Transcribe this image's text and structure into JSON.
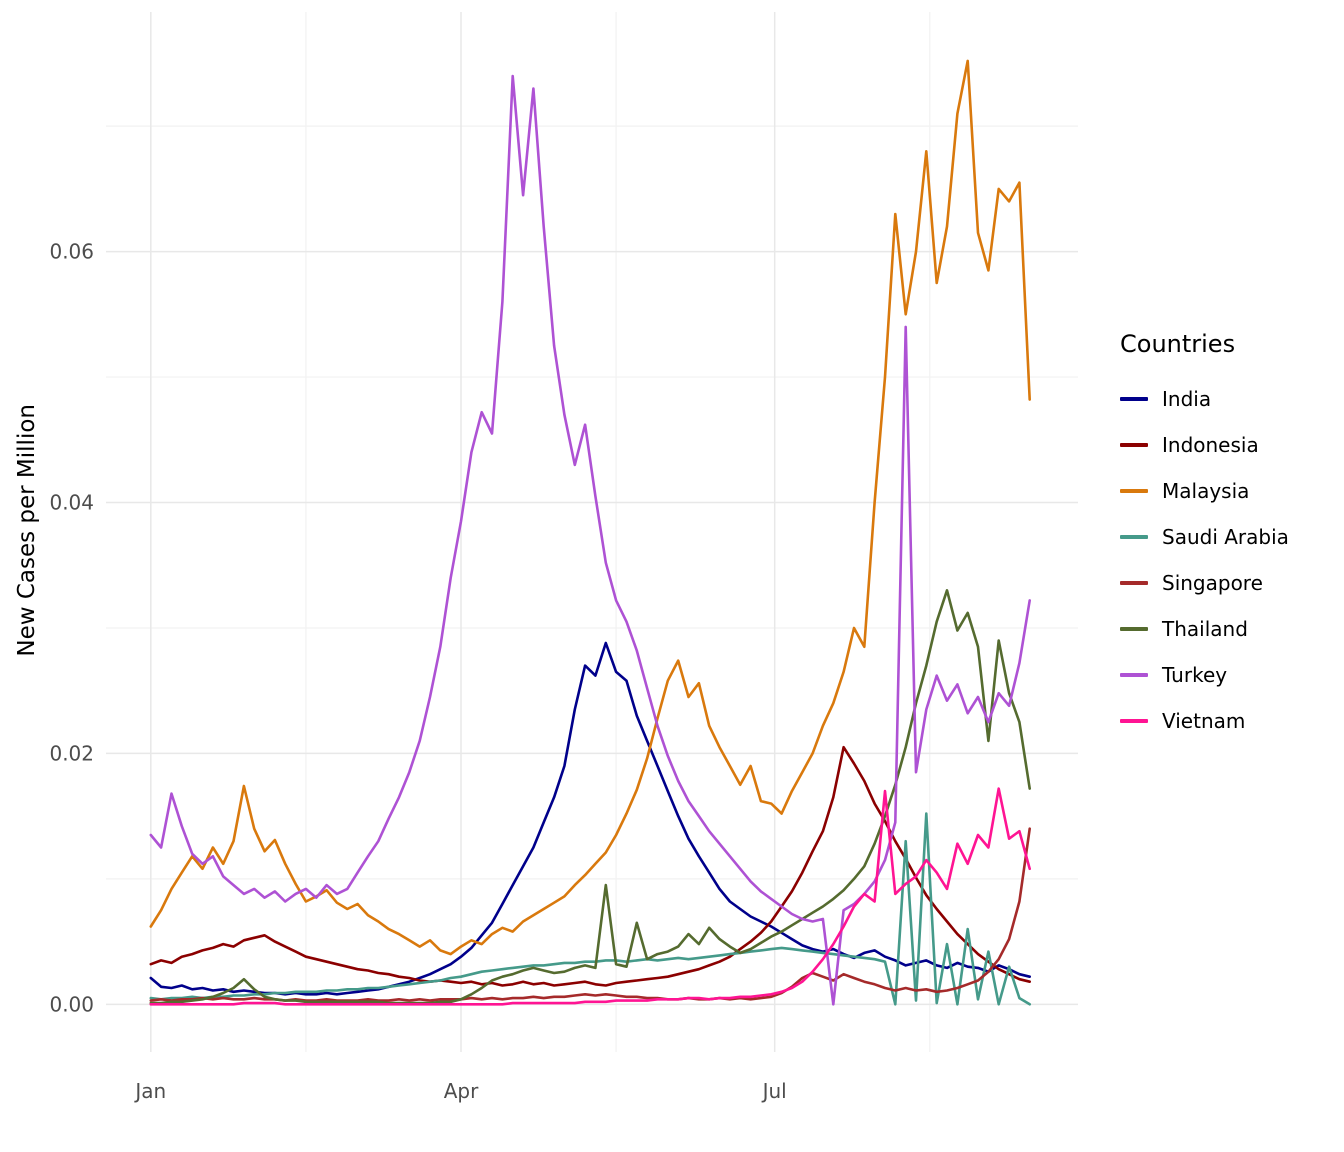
{
  "figure": {
    "background": "#FFFFFF"
  },
  "panel": {
    "background": "#FFFFFF",
    "grid_major_color": "#E8E8E8",
    "grid_minor_color": "#F2F2F2",
    "tick_label_color": "#4D4D4D"
  },
  "chart_data": {
    "type": "line",
    "title": "",
    "xlabel": "",
    "ylabel": "New Cases per Million",
    "legend_title": "Countries",
    "legend_position": "right",
    "grid": true,
    "x_unit": "day_of_year",
    "xlim": [
      -13,
      269
    ],
    "ylim": [
      -0.0038,
      0.0791
    ],
    "x_ticks": [
      {
        "day": 0,
        "label": "Jan"
      },
      {
        "day": 90,
        "label": "Apr"
      },
      {
        "day": 181,
        "label": "Jul"
      }
    ],
    "x_minor_days": [
      45,
      135,
      226
    ],
    "y_ticks": [
      0.0,
      0.02,
      0.04,
      0.06
    ],
    "y_tick_labels": [
      "0.00",
      "0.02",
      "0.04",
      "0.06"
    ],
    "y_minor": [
      0.01,
      0.03,
      0.05,
      0.07
    ],
    "days": [
      0,
      3,
      6,
      9,
      12,
      15,
      18,
      21,
      24,
      27,
      30,
      33,
      36,
      39,
      42,
      45,
      48,
      51,
      54,
      57,
      60,
      63,
      66,
      69,
      72,
      75,
      78,
      81,
      84,
      87,
      90,
      93,
      96,
      99,
      102,
      105,
      108,
      111,
      114,
      117,
      120,
      123,
      126,
      129,
      132,
      135,
      138,
      141,
      144,
      147,
      150,
      153,
      156,
      159,
      162,
      165,
      168,
      171,
      174,
      177,
      180,
      183,
      186,
      189,
      192,
      195,
      198,
      201,
      204,
      207,
      210,
      213,
      216,
      219,
      222,
      225,
      228,
      231,
      234,
      237,
      240,
      243,
      246,
      249,
      252,
      255
    ],
    "series": [
      {
        "name": "India",
        "color": "#00008B",
        "values": [
          0.0021,
          0.0014,
          0.0013,
          0.0015,
          0.0012,
          0.0013,
          0.0011,
          0.0012,
          0.001,
          0.0011,
          0.001,
          0.0009,
          0.0009,
          0.0008,
          0.0009,
          0.0008,
          0.0008,
          0.0009,
          0.0008,
          0.0009,
          0.001,
          0.0011,
          0.0012,
          0.0014,
          0.0016,
          0.0018,
          0.0021,
          0.0024,
          0.0028,
          0.0032,
          0.0038,
          0.0045,
          0.0055,
          0.0065,
          0.008,
          0.0095,
          0.011,
          0.0125,
          0.0145,
          0.0165,
          0.019,
          0.0235,
          0.027,
          0.0262,
          0.0288,
          0.0265,
          0.0258,
          0.023,
          0.021,
          0.019,
          0.017,
          0.015,
          0.0132,
          0.0118,
          0.0105,
          0.0092,
          0.0082,
          0.0076,
          0.007,
          0.0066,
          0.0062,
          0.0057,
          0.0052,
          0.0047,
          0.0044,
          0.0042,
          0.0044,
          0.004,
          0.0037,
          0.0041,
          0.0043,
          0.0038,
          0.0035,
          0.0031,
          0.0033,
          0.0035,
          0.0031,
          0.0029,
          0.0033,
          0.003,
          0.0029,
          0.0026,
          0.0031,
          0.0028,
          0.0024,
          0.0022
        ]
      },
      {
        "name": "Indonesia",
        "color": "#8B0000",
        "values": [
          0.0032,
          0.0035,
          0.0033,
          0.0038,
          0.004,
          0.0043,
          0.0045,
          0.0048,
          0.0046,
          0.0051,
          0.0053,
          0.0055,
          0.005,
          0.0046,
          0.0042,
          0.0038,
          0.0036,
          0.0034,
          0.0032,
          0.003,
          0.0028,
          0.0027,
          0.0025,
          0.0024,
          0.0022,
          0.0021,
          0.0019,
          0.0018,
          0.0019,
          0.0018,
          0.0017,
          0.0018,
          0.0016,
          0.0017,
          0.0015,
          0.0016,
          0.0018,
          0.0016,
          0.0017,
          0.0015,
          0.0016,
          0.0017,
          0.0018,
          0.0016,
          0.0015,
          0.0017,
          0.0018,
          0.0019,
          0.002,
          0.0021,
          0.0022,
          0.0024,
          0.0026,
          0.0028,
          0.0031,
          0.0034,
          0.0038,
          0.0044,
          0.005,
          0.0057,
          0.0066,
          0.0078,
          0.009,
          0.0105,
          0.0122,
          0.0138,
          0.0165,
          0.0205,
          0.0192,
          0.0178,
          0.016,
          0.0146,
          0.013,
          0.0116,
          0.0101,
          0.0087,
          0.0076,
          0.0066,
          0.0056,
          0.0048,
          0.004,
          0.0034,
          0.0028,
          0.0024,
          0.002,
          0.0018
        ]
      },
      {
        "name": "Malaysia",
        "color": "#D9790D",
        "values": [
          0.0062,
          0.0075,
          0.0092,
          0.0105,
          0.0118,
          0.0108,
          0.0125,
          0.0112,
          0.013,
          0.0174,
          0.014,
          0.0122,
          0.0131,
          0.0112,
          0.0096,
          0.0082,
          0.0086,
          0.0091,
          0.0081,
          0.0076,
          0.008,
          0.0071,
          0.0066,
          0.006,
          0.0056,
          0.0051,
          0.0046,
          0.0051,
          0.0043,
          0.004,
          0.0046,
          0.0051,
          0.0048,
          0.0056,
          0.0061,
          0.0058,
          0.0066,
          0.0071,
          0.0076,
          0.0081,
          0.0086,
          0.0095,
          0.0103,
          0.0112,
          0.0121,
          0.0135,
          0.0152,
          0.0171,
          0.0196,
          0.0228,
          0.0258,
          0.0274,
          0.0245,
          0.0256,
          0.0222,
          0.0205,
          0.019,
          0.0175,
          0.019,
          0.0162,
          0.016,
          0.0152,
          0.017,
          0.0185,
          0.02,
          0.0222,
          0.024,
          0.0265,
          0.03,
          0.0285,
          0.04,
          0.05,
          0.063,
          0.055,
          0.06,
          0.068,
          0.0575,
          0.062,
          0.071,
          0.0752,
          0.0615,
          0.0585,
          0.065,
          0.064,
          0.0655,
          0.0482
        ]
      },
      {
        "name": "Saudi Arabia",
        "color": "#459A8A",
        "values": [
          0.0005,
          0.0004,
          0.0005,
          0.0005,
          0.0006,
          0.0005,
          0.0006,
          0.0006,
          0.0007,
          0.0007,
          0.0008,
          0.0008,
          0.0009,
          0.0009,
          0.001,
          0.001,
          0.001,
          0.0011,
          0.0011,
          0.0012,
          0.0012,
          0.0013,
          0.0013,
          0.0014,
          0.0015,
          0.0016,
          0.0017,
          0.0018,
          0.0019,
          0.0021,
          0.0022,
          0.0024,
          0.0026,
          0.0027,
          0.0028,
          0.0029,
          0.003,
          0.0031,
          0.0031,
          0.0032,
          0.0033,
          0.0033,
          0.0034,
          0.0034,
          0.0035,
          0.0035,
          0.0034,
          0.0035,
          0.0036,
          0.0035,
          0.0036,
          0.0037,
          0.0036,
          0.0037,
          0.0038,
          0.0039,
          0.004,
          0.0041,
          0.0042,
          0.0043,
          0.0044,
          0.0045,
          0.0044,
          0.0043,
          0.0042,
          0.0041,
          0.004,
          0.0039,
          0.0038,
          0.0037,
          0.0036,
          0.0034,
          0.0,
          0.013,
          0.0003,
          0.0152,
          0.0001,
          0.0048,
          0.0,
          0.006,
          0.0004,
          0.0042,
          0.0,
          0.003,
          0.0005,
          0.0
        ]
      },
      {
        "name": "Singapore",
        "color": "#A52A2A",
        "values": [
          0.0003,
          0.0004,
          0.0003,
          0.0004,
          0.0004,
          0.0005,
          0.0004,
          0.0005,
          0.0004,
          0.0004,
          0.0005,
          0.0004,
          0.0004,
          0.0003,
          0.0004,
          0.0003,
          0.0003,
          0.0004,
          0.0003,
          0.0003,
          0.0003,
          0.0004,
          0.0003,
          0.0003,
          0.0004,
          0.0003,
          0.0004,
          0.0003,
          0.0004,
          0.0004,
          0.0004,
          0.0005,
          0.0004,
          0.0005,
          0.0004,
          0.0005,
          0.0005,
          0.0006,
          0.0005,
          0.0006,
          0.0006,
          0.0007,
          0.0008,
          0.0007,
          0.0008,
          0.0007,
          0.0006,
          0.0006,
          0.0005,
          0.0005,
          0.0004,
          0.0004,
          0.0005,
          0.0004,
          0.0004,
          0.0005,
          0.0004,
          0.0005,
          0.0004,
          0.0005,
          0.0006,
          0.0009,
          0.0014,
          0.0021,
          0.0025,
          0.0022,
          0.0019,
          0.0024,
          0.0021,
          0.0018,
          0.0016,
          0.0013,
          0.0011,
          0.0013,
          0.0011,
          0.0012,
          0.001,
          0.0011,
          0.0013,
          0.0016,
          0.0019,
          0.0026,
          0.0036,
          0.0052,
          0.0082,
          0.014
        ]
      },
      {
        "name": "Thailand",
        "color": "#556B2F",
        "values": [
          0.0001,
          0.0001,
          0.0002,
          0.0002,
          0.0003,
          0.0004,
          0.0006,
          0.0009,
          0.0013,
          0.002,
          0.0012,
          0.0006,
          0.0004,
          0.0003,
          0.0003,
          0.0002,
          0.0002,
          0.0002,
          0.0002,
          0.0002,
          0.0002,
          0.0002,
          0.0002,
          0.0001,
          0.0001,
          0.0001,
          0.0001,
          0.0001,
          0.0002,
          0.0002,
          0.0004,
          0.0008,
          0.0013,
          0.0019,
          0.0022,
          0.0024,
          0.0027,
          0.0029,
          0.0027,
          0.0025,
          0.0026,
          0.0029,
          0.0031,
          0.0029,
          0.0095,
          0.0032,
          0.003,
          0.0065,
          0.0036,
          0.004,
          0.0042,
          0.0046,
          0.0056,
          0.0048,
          0.0061,
          0.0052,
          0.0046,
          0.0041,
          0.0044,
          0.0049,
          0.0054,
          0.0058,
          0.0063,
          0.0068,
          0.0073,
          0.0078,
          0.0084,
          0.0091,
          0.01,
          0.011,
          0.0128,
          0.015,
          0.0175,
          0.0205,
          0.024,
          0.027,
          0.0305,
          0.033,
          0.0298,
          0.0312,
          0.0285,
          0.021,
          0.029,
          0.0248,
          0.0225,
          0.0172
        ]
      },
      {
        "name": "Turkey",
        "color": "#AE52D4",
        "values": [
          0.0135,
          0.0125,
          0.0168,
          0.0142,
          0.012,
          0.0112,
          0.0118,
          0.0102,
          0.0095,
          0.0088,
          0.0092,
          0.0085,
          0.009,
          0.0082,
          0.0088,
          0.0092,
          0.0085,
          0.0095,
          0.0088,
          0.0092,
          0.0105,
          0.0118,
          0.013,
          0.0148,
          0.0165,
          0.0185,
          0.021,
          0.0245,
          0.0285,
          0.034,
          0.0385,
          0.044,
          0.0472,
          0.0455,
          0.056,
          0.074,
          0.0645,
          0.073,
          0.062,
          0.0525,
          0.047,
          0.043,
          0.0462,
          0.0405,
          0.0352,
          0.0322,
          0.0305,
          0.0282,
          0.0252,
          0.0222,
          0.0198,
          0.0178,
          0.0162,
          0.015,
          0.0138,
          0.0128,
          0.0118,
          0.0108,
          0.0098,
          0.009,
          0.0084,
          0.0078,
          0.0072,
          0.0068,
          0.0066,
          0.0068,
          0.0,
          0.0075,
          0.008,
          0.0088,
          0.0098,
          0.0115,
          0.0145,
          0.054,
          0.0185,
          0.0235,
          0.0262,
          0.0242,
          0.0255,
          0.0232,
          0.0245,
          0.0225,
          0.0248,
          0.0238,
          0.0272,
          0.0322
        ]
      },
      {
        "name": "Vietnam",
        "color": "#FF1493",
        "values": [
          0.0,
          0.0,
          0.0,
          0.0,
          0.0,
          0.0,
          0.0,
          0.0,
          0.0,
          0.0001,
          0.0001,
          0.0001,
          0.0001,
          0.0,
          0.0,
          0.0,
          0.0,
          0.0,
          0.0,
          0.0,
          0.0,
          0.0,
          0.0,
          0.0,
          0.0,
          0.0,
          0.0,
          0.0,
          0.0,
          0.0,
          0.0,
          0.0,
          0.0,
          0.0,
          0.0,
          0.0001,
          0.0001,
          0.0001,
          0.0001,
          0.0001,
          0.0001,
          0.0001,
          0.0002,
          0.0002,
          0.0002,
          0.0003,
          0.0003,
          0.0003,
          0.0003,
          0.0004,
          0.0004,
          0.0004,
          0.0005,
          0.0005,
          0.0004,
          0.0005,
          0.0005,
          0.0006,
          0.0006,
          0.0007,
          0.0008,
          0.001,
          0.0013,
          0.0018,
          0.0026,
          0.0036,
          0.0048,
          0.0062,
          0.0078,
          0.0088,
          0.0082,
          0.017,
          0.0088,
          0.0096,
          0.0102,
          0.0115,
          0.0105,
          0.0092,
          0.0128,
          0.0112,
          0.0135,
          0.0125,
          0.0172,
          0.0132,
          0.0138,
          0.0108
        ]
      }
    ]
  }
}
